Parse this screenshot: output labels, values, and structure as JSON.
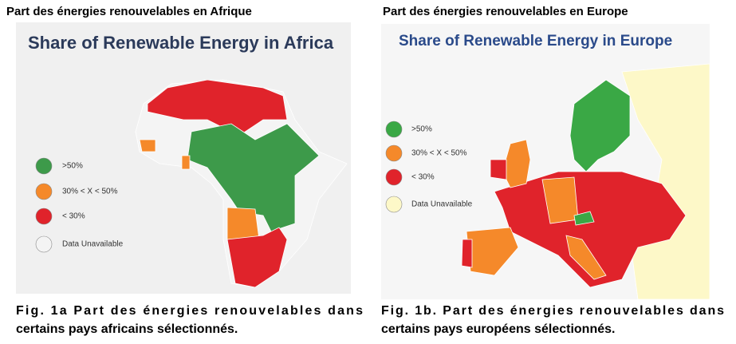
{
  "left": {
    "heading": "Part des énergies renouvelables en Afrique",
    "map_title": "Share of Renewable Energy in Africa",
    "legend": [
      {
        "label": ">50%",
        "color": "#3d9a4a"
      },
      {
        "label": "30% < X < 50%",
        "color": "#f5892a"
      },
      {
        "label": "< 30%",
        "color": "#e0232b"
      },
      {
        "label": "Data Unavailable",
        "color": "#f4f4f4"
      }
    ],
    "caption": [
      "Fig. 1a Part des énergies renouvelables dans",
      "certains pays africains sélectionnés."
    ]
  },
  "right": {
    "heading": "Part des énergies renouvelables en Europe",
    "map_title": "Share of Renewable Energy in Europe",
    "legend": [
      {
        "label": ">50%",
        "color": "#3aa845"
      },
      {
        "label": "30% < X < 50%",
        "color": "#f5892a"
      },
      {
        "label": "< 30%",
        "color": "#e0232b"
      },
      {
        "label": "Data Unavailable",
        "color": "#fdf8c8"
      }
    ],
    "caption": [
      "Fig. 1b. Part des énergies renouvelables dans",
      "certains pays européens sélectionnés."
    ]
  }
}
